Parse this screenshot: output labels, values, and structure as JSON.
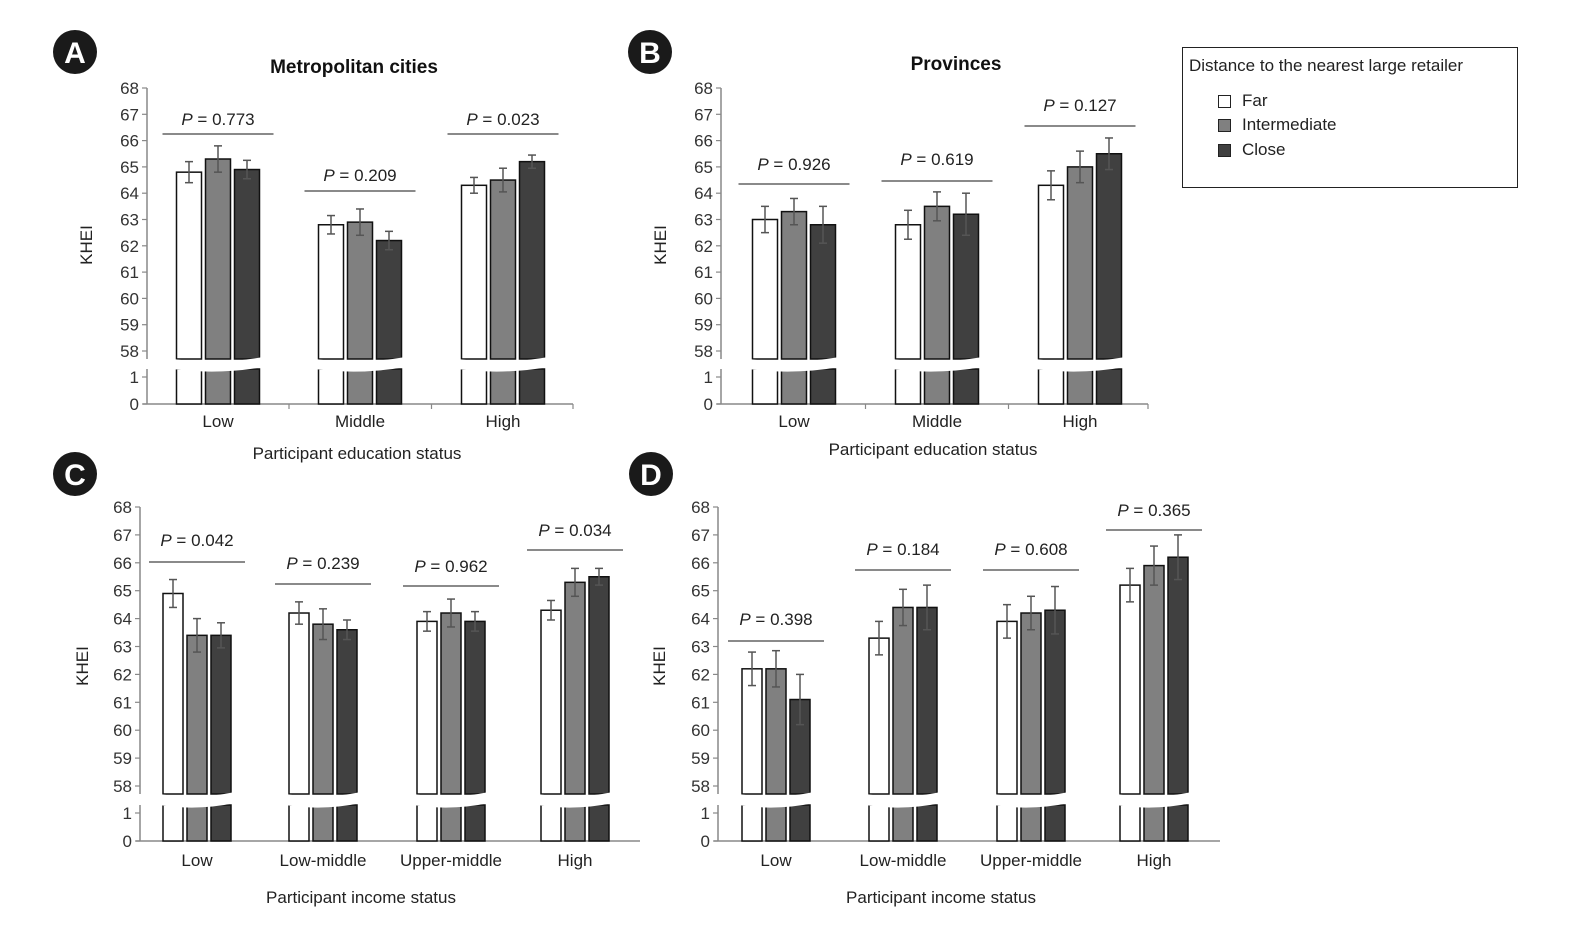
{
  "legend": {
    "title": "Distance to the nearest large retailer",
    "items": [
      {
        "label": "Far",
        "color": "#ffffff"
      },
      {
        "label": "Intermediate",
        "color": "#808080"
      },
      {
        "label": "Close",
        "color": "#404040"
      }
    ]
  },
  "chart_data": [
    {
      "panel": "A",
      "type": "bar",
      "title": "Metropolitan cities",
      "xlabel": "Participant education status",
      "ylabel": "KHEI",
      "ylim": [
        0,
        68
      ],
      "axis_break": [
        1,
        58
      ],
      "yticks": [
        0,
        1,
        58,
        59,
        60,
        61,
        62,
        63,
        64,
        65,
        66,
        67,
        68
      ],
      "categories": [
        "Low",
        "Middle",
        "High"
      ],
      "series": [
        {
          "name": "Far",
          "values": [
            64.8,
            62.8,
            64.3
          ],
          "errors": [
            0.4,
            0.35,
            0.3
          ]
        },
        {
          "name": "Intermediate",
          "values": [
            65.3,
            62.9,
            64.5
          ],
          "errors": [
            0.5,
            0.5,
            0.45
          ]
        },
        {
          "name": "Close",
          "values": [
            64.9,
            62.2,
            65.2
          ],
          "errors": [
            0.35,
            0.35,
            0.25
          ]
        }
      ],
      "p_values": [
        "P = 0.773",
        "P = 0.209",
        "P = 0.023"
      ]
    },
    {
      "panel": "B",
      "type": "bar",
      "title": "Provinces",
      "xlabel": "Participant education status",
      "ylabel": "KHEI",
      "ylim": [
        0,
        68
      ],
      "axis_break": [
        1,
        58
      ],
      "yticks": [
        0,
        1,
        58,
        59,
        60,
        61,
        62,
        63,
        64,
        65,
        66,
        67,
        68
      ],
      "categories": [
        "Low",
        "Middle",
        "High"
      ],
      "series": [
        {
          "name": "Far",
          "values": [
            63.0,
            62.8,
            64.3
          ],
          "errors": [
            0.5,
            0.55,
            0.55
          ]
        },
        {
          "name": "Intermediate",
          "values": [
            63.3,
            63.5,
            65.0
          ],
          "errors": [
            0.5,
            0.55,
            0.6
          ]
        },
        {
          "name": "Close",
          "values": [
            62.8,
            63.2,
            65.5
          ],
          "errors": [
            0.7,
            0.8,
            0.6
          ]
        }
      ],
      "p_values": [
        "P = 0.926",
        "P = 0.619",
        "P = 0.127"
      ]
    },
    {
      "panel": "C",
      "type": "bar",
      "title": "",
      "xlabel": "Participant income status",
      "ylabel": "KHEI",
      "ylim": [
        0,
        68
      ],
      "axis_break": [
        1,
        58
      ],
      "yticks": [
        0,
        1,
        58,
        59,
        60,
        61,
        62,
        63,
        64,
        65,
        66,
        67,
        68
      ],
      "categories": [
        "Low",
        "Low-middle",
        "Upper-middle",
        "High"
      ],
      "series": [
        {
          "name": "Far",
          "values": [
            64.9,
            64.2,
            63.9,
            64.3
          ],
          "errors": [
            0.5,
            0.4,
            0.35,
            0.35
          ]
        },
        {
          "name": "Intermediate",
          "values": [
            63.4,
            63.8,
            64.2,
            65.3
          ],
          "errors": [
            0.6,
            0.55,
            0.5,
            0.5
          ]
        },
        {
          "name": "Close",
          "values": [
            63.4,
            63.6,
            63.9,
            65.5
          ],
          "errors": [
            0.45,
            0.35,
            0.35,
            0.3
          ]
        }
      ],
      "p_values": [
        "P = 0.042",
        "P = 0.239",
        "P = 0.962",
        "P = 0.034"
      ]
    },
    {
      "panel": "D",
      "type": "bar",
      "title": "",
      "xlabel": "Participant income status",
      "ylabel": "KHEI",
      "ylim": [
        0,
        68
      ],
      "axis_break": [
        1,
        58
      ],
      "yticks": [
        0,
        1,
        58,
        59,
        60,
        61,
        62,
        63,
        64,
        65,
        66,
        67,
        68
      ],
      "categories": [
        "Low",
        "Low-middle",
        "Upper-middle",
        "High"
      ],
      "series": [
        {
          "name": "Far",
          "values": [
            62.2,
            63.3,
            63.9,
            65.2
          ],
          "errors": [
            0.6,
            0.6,
            0.6,
            0.6
          ]
        },
        {
          "name": "Intermediate",
          "values": [
            62.2,
            64.4,
            64.2,
            65.9
          ],
          "errors": [
            0.65,
            0.65,
            0.6,
            0.7
          ]
        },
        {
          "name": "Close",
          "values": [
            61.1,
            64.4,
            64.3,
            66.2
          ],
          "errors": [
            0.9,
            0.8,
            0.85,
            0.8
          ]
        }
      ],
      "p_values": [
        "P = 0.398",
        "P = 0.184",
        "P = 0.608",
        "P = 0.365"
      ]
    }
  ]
}
